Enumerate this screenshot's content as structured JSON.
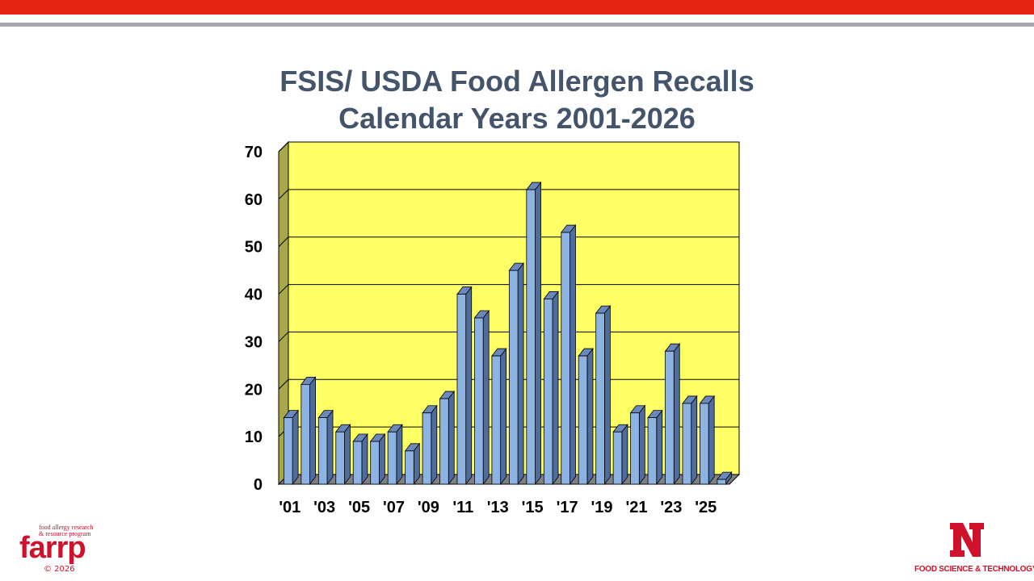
{
  "slide": {
    "title_line1": "FSIS/ USDA Food Allergen Recalls",
    "title_line2": "Calendar Years 2001-2026"
  },
  "logos": {
    "farrp_tagline": "food allergy research\n& resource program",
    "farrp_wordmark": "farrp",
    "copyright": "© 2026",
    "dept": "FOOD SCIENCE & TECHNOLOGY"
  },
  "colors": {
    "top_band": "#e32512",
    "title_text": "#44546a",
    "plot_background": "#ffff66",
    "bar_front": "#8db3e2",
    "bar_side": "#4f6c9e",
    "bar_top": "#6a88bc"
  },
  "chart_data": {
    "type": "bar",
    "style": "3d-clustered-column",
    "title": "FSIS/ USDA Food Allergen Recalls Calendar Years 2001-2026",
    "categories": [
      "'01",
      "'02",
      "'03",
      "'04",
      "'05",
      "'06",
      "'07",
      "'08",
      "'09",
      "'10",
      "'11",
      "'12",
      "'13",
      "'14",
      "'15",
      "'16",
      "'17",
      "'18",
      "'19",
      "'20",
      "'21",
      "'22",
      "'23",
      "'24",
      "'25",
      "'26"
    ],
    "tick_labels": [
      "'01",
      "'03",
      "'05",
      "'07",
      "'09",
      "'11",
      "'13",
      "'15",
      "'17",
      "'19",
      "'21",
      "'23",
      "'25"
    ],
    "values": [
      14,
      21,
      14,
      11,
      9,
      9,
      11,
      7,
      15,
      18,
      40,
      35,
      27,
      45,
      62,
      39,
      53,
      27,
      36,
      11,
      15,
      14,
      28,
      17,
      17,
      1
    ],
    "ylim": [
      0,
      70
    ],
    "yticks": [
      0,
      10,
      20,
      30,
      40,
      50,
      60,
      70
    ],
    "grid": true,
    "legend": "none"
  }
}
